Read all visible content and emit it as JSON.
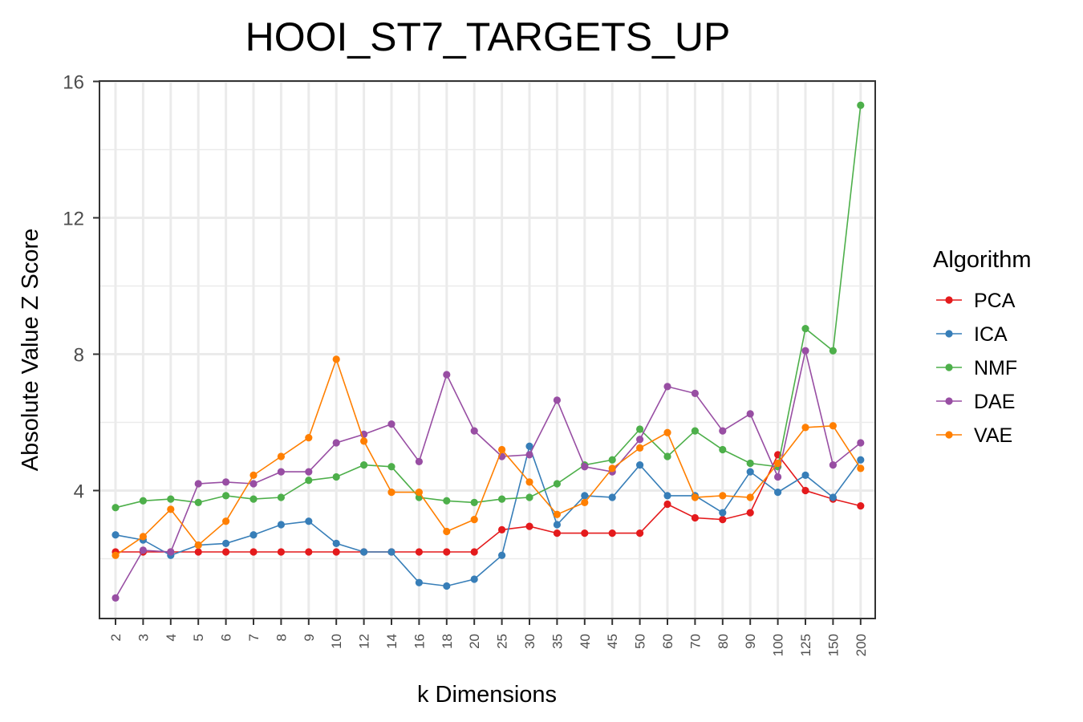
{
  "chart_data": {
    "type": "line",
    "title": "HOOI_ST7_TARGETS_UP",
    "xlabel": "k Dimensions",
    "ylabel": "Absolute Value Z Score",
    "categories": [
      "2",
      "3",
      "4",
      "5",
      "6",
      "7",
      "8",
      "9",
      "10",
      "12",
      "14",
      "16",
      "18",
      "20",
      "25",
      "30",
      "35",
      "40",
      "45",
      "50",
      "60",
      "70",
      "80",
      "90",
      "100",
      "125",
      "150",
      "200"
    ],
    "ylim": [
      0,
      16
    ],
    "yticks": [
      4,
      8,
      12,
      16
    ],
    "grid": true,
    "legend": {
      "title": "Algorithm",
      "position": "right"
    },
    "series": [
      {
        "name": "PCA",
        "color": "#e41a1c",
        "values": [
          2.2,
          2.2,
          2.2,
          2.2,
          2.2,
          2.2,
          2.2,
          2.2,
          2.2,
          2.2,
          2.2,
          2.2,
          2.2,
          2.2,
          2.85,
          2.95,
          2.75,
          2.75,
          2.75,
          2.75,
          3.6,
          3.2,
          3.15,
          3.35,
          5.05,
          4.0,
          3.75,
          3.55
        ]
      },
      {
        "name": "ICA",
        "color": "#377eb8",
        "values": [
          2.7,
          2.55,
          2.1,
          2.4,
          2.45,
          2.7,
          3.0,
          3.1,
          2.45,
          2.2,
          2.2,
          1.3,
          1.2,
          1.4,
          2.1,
          5.3,
          3.0,
          3.85,
          3.8,
          4.75,
          3.85,
          3.85,
          3.35,
          4.55,
          3.95,
          4.45,
          3.8,
          4.9
        ]
      },
      {
        "name": "NMF",
        "color": "#4daf4a",
        "values": [
          3.5,
          3.7,
          3.75,
          3.65,
          3.85,
          3.75,
          3.8,
          4.3,
          4.4,
          4.75,
          4.7,
          3.8,
          3.7,
          3.65,
          3.75,
          3.8,
          4.2,
          4.75,
          4.9,
          5.8,
          5.0,
          5.75,
          5.2,
          4.8,
          4.7,
          8.75,
          8.1,
          15.3
        ]
      },
      {
        "name": "DAE",
        "color": "#984ea3",
        "values": [
          0.85,
          2.25,
          2.2,
          4.2,
          4.25,
          4.2,
          4.55,
          4.55,
          5.4,
          5.65,
          5.95,
          4.85,
          7.4,
          5.75,
          5.0,
          5.05,
          6.65,
          4.7,
          4.55,
          5.5,
          7.05,
          6.85,
          5.75,
          6.25,
          4.4,
          8.1,
          4.75,
          5.4
        ]
      },
      {
        "name": "VAE",
        "color": "#ff7f00",
        "values": [
          2.1,
          2.65,
          3.45,
          2.4,
          3.1,
          4.45,
          5.0,
          5.55,
          7.85,
          5.45,
          3.95,
          3.95,
          2.8,
          3.15,
          5.2,
          4.25,
          3.3,
          3.65,
          4.65,
          5.25,
          5.7,
          3.8,
          3.85,
          3.8,
          4.8,
          5.85,
          5.9,
          4.65
        ]
      }
    ]
  }
}
